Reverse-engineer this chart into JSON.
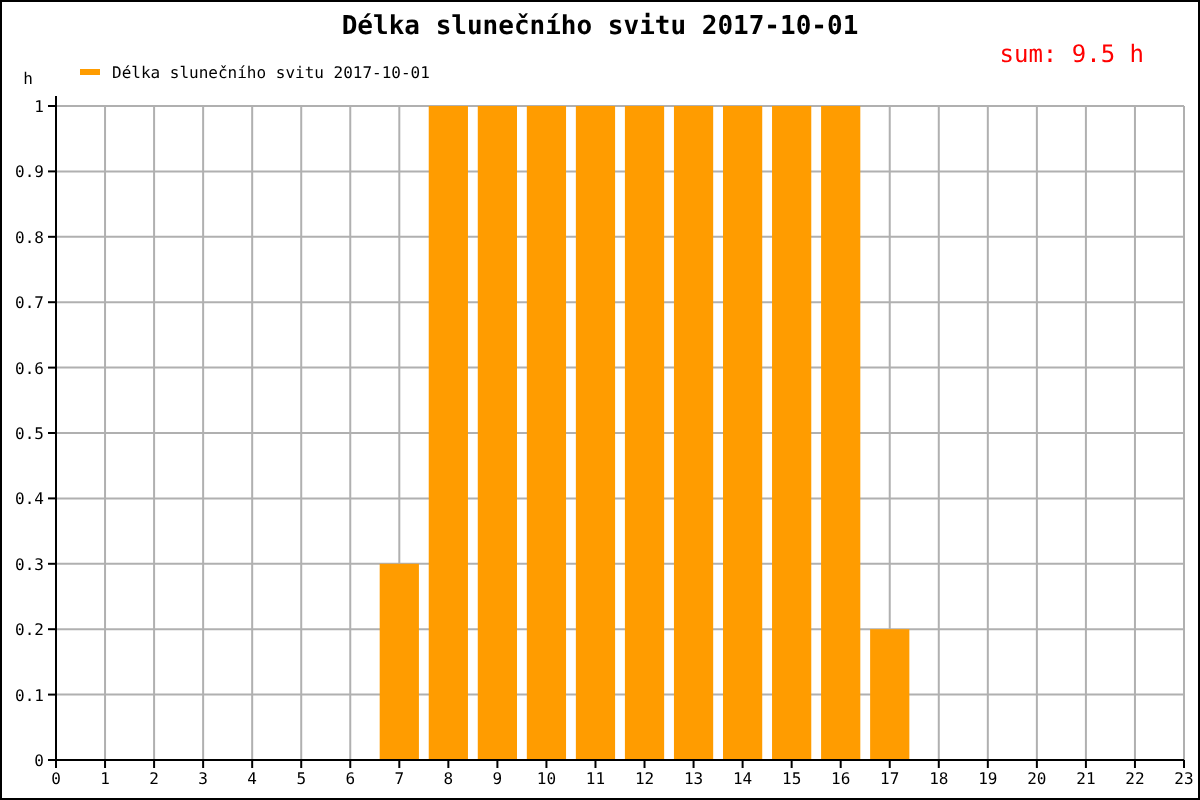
{
  "chart_data": {
    "type": "bar",
    "title": "Délka slunečního svitu 2017-10-01",
    "ylabel": "h",
    "annotations": [
      "sum: 9.5 h"
    ],
    "x": [
      7,
      8,
      9,
      10,
      11,
      12,
      13,
      14,
      15,
      16,
      17
    ],
    "series": [
      {
        "name": "Délka slunečního svitu 2017-10-01",
        "color": "#ff9c00",
        "values": [
          0.3,
          1,
          1,
          1,
          1,
          1,
          1,
          1,
          1,
          1,
          0.2
        ]
      }
    ],
    "xlim": [
      0,
      23
    ],
    "xticks": [
      0,
      1,
      2,
      3,
      4,
      5,
      6,
      7,
      8,
      9,
      10,
      11,
      12,
      13,
      14,
      15,
      16,
      17,
      18,
      19,
      20,
      21,
      22,
      23
    ],
    "ylim": [
      0,
      1
    ],
    "yticks": [
      0,
      0.1,
      0.2,
      0.3,
      0.4,
      0.5,
      0.6,
      0.7,
      0.8,
      0.9,
      1
    ],
    "grid": true,
    "legend": "top left"
  }
}
